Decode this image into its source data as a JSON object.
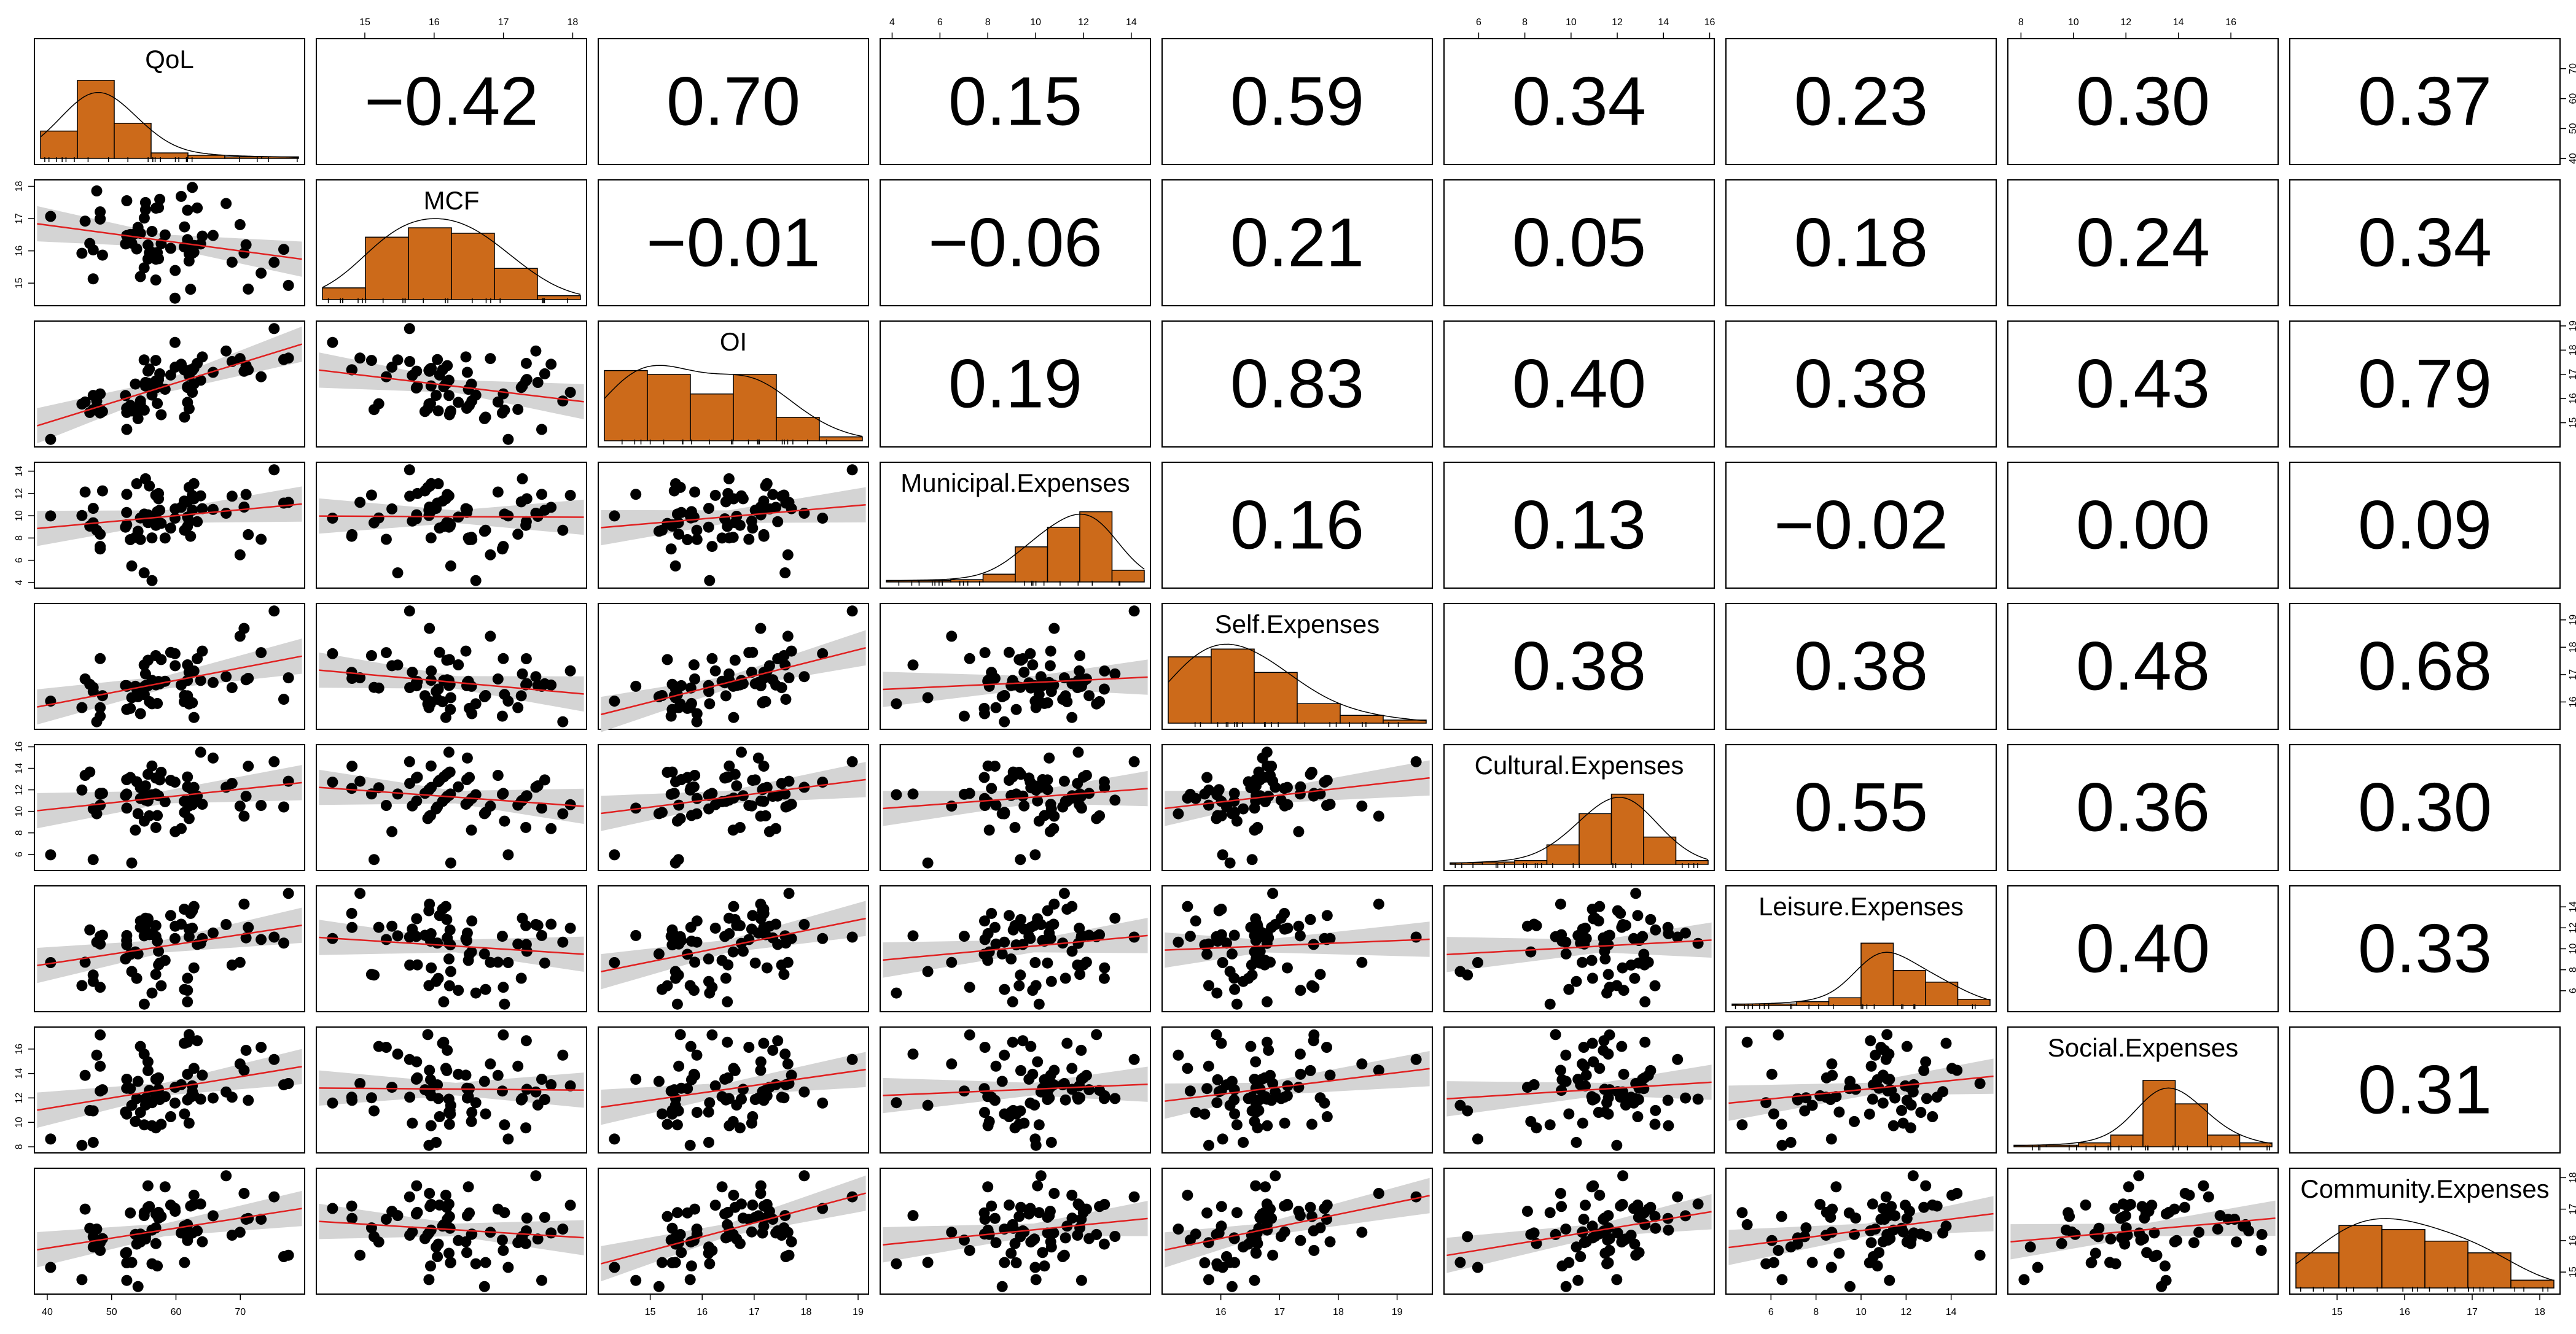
{
  "chart_data": {
    "type": "scatter-matrix",
    "variables": [
      "QoL",
      "MCF",
      "OI",
      "Municipal.Expenses",
      "Self.Expenses",
      "Cultural.Expenses",
      "Leisure.Expenses",
      "Social.Expenses",
      "Community.Expenses"
    ],
    "ranges": [
      [
        38,
        80
      ],
      [
        14.3,
        18.2
      ],
      [
        14.0,
        19.2
      ],
      [
        3.5,
        14.8
      ],
      [
        15.0,
        19.6
      ],
      [
        4.5,
        16.2
      ],
      [
        4.0,
        16.0
      ],
      [
        7.5,
        17.8
      ],
      [
        14.3,
        18.3
      ]
    ],
    "correlations": [
      [
        null,
        "−0.42",
        "0.70",
        "0.15",
        "0.59",
        "0.34",
        "0.23",
        "0.30",
        "0.37"
      ],
      [
        null,
        null,
        "−0.01",
        "−0.06",
        "0.21",
        "0.05",
        "0.18",
        "0.24",
        "0.34"
      ],
      [
        null,
        null,
        null,
        "0.19",
        "0.83",
        "0.40",
        "0.38",
        "0.43",
        "0.79"
      ],
      [
        null,
        null,
        null,
        null,
        "0.16",
        "0.13",
        "−0.02",
        "0.00",
        "0.09"
      ],
      [
        null,
        null,
        null,
        null,
        null,
        "0.38",
        "0.38",
        "0.48",
        "0.68"
      ],
      [
        null,
        null,
        null,
        null,
        null,
        null,
        "0.55",
        "0.36",
        "0.30"
      ],
      [
        null,
        null,
        null,
        null,
        null,
        null,
        null,
        "0.40",
        "0.33"
      ],
      [
        null,
        null,
        null,
        null,
        null,
        null,
        null,
        null,
        "0.31"
      ]
    ],
    "histograms": [
      [
        0.35,
        1.0,
        0.45,
        0.07,
        0.04,
        0.02,
        0.02
      ],
      [
        0.15,
        0.8,
        0.92,
        0.85,
        0.4,
        0.05
      ],
      [
        0.9,
        0.85,
        0.6,
        0.85,
        0.3,
        0.05
      ],
      [
        0.02,
        0.02,
        0.03,
        0.1,
        0.45,
        0.7,
        0.9,
        0.15
      ],
      [
        0.85,
        0.95,
        0.65,
        0.25,
        0.1,
        0.04
      ],
      [
        0.02,
        0.03,
        0.05,
        0.25,
        0.65,
        0.9,
        0.35,
        0.05
      ],
      [
        0.02,
        0.02,
        0.05,
        0.1,
        0.8,
        0.45,
        0.3,
        0.08
      ],
      [
        0.02,
        0.02,
        0.05,
        0.15,
        0.85,
        0.55,
        0.15,
        0.05
      ],
      [
        0.45,
        0.8,
        0.75,
        0.6,
        0.45,
        0.1
      ]
    ],
    "axis_ticks": {
      "top": [
        {
          "col": 1,
          "ticks": [
            "15",
            "16",
            "17",
            "18"
          ]
        },
        {
          "col": 3,
          "ticks": [
            "4",
            "6",
            "8",
            "10",
            "12",
            "14"
          ]
        },
        {
          "col": 5,
          "ticks": [
            "6",
            "8",
            "10",
            "12",
            "14",
            "16"
          ]
        },
        {
          "col": 7,
          "ticks": [
            "8",
            "10",
            "12",
            "14",
            "16"
          ]
        }
      ],
      "bottom": [
        {
          "col": 0,
          "ticks": [
            "40",
            "50",
            "60",
            "70"
          ]
        },
        {
          "col": 2,
          "ticks": [
            "15",
            "16",
            "17",
            "18",
            "19"
          ]
        },
        {
          "col": 4,
          "ticks": [
            "16",
            "17",
            "18",
            "19"
          ]
        },
        {
          "col": 6,
          "ticks": [
            "6",
            "8",
            "10",
            "12",
            "14"
          ]
        },
        {
          "col": 8,
          "ticks": [
            "15",
            "16",
            "17",
            "18"
          ]
        }
      ],
      "left": [
        {
          "row": 1,
          "ticks": [
            "15",
            "16",
            "17",
            "18"
          ]
        },
        {
          "row": 3,
          "ticks": [
            "4",
            "6",
            "8",
            "10",
            "12",
            "14"
          ]
        },
        {
          "row": 5,
          "ticks": [
            "6",
            "8",
            "10",
            "12",
            "14",
            "16"
          ]
        },
        {
          "row": 7,
          "ticks": [
            "8",
            "10",
            "12",
            "14",
            "16"
          ]
        }
      ],
      "right": [
        {
          "row": 0,
          "ticks": [
            "40",
            "50",
            "60",
            "70"
          ]
        },
        {
          "row": 2,
          "ticks": [
            "15",
            "16",
            "17",
            "18",
            "19"
          ]
        },
        {
          "row": 4,
          "ticks": [
            "16",
            "17",
            "18",
            "19"
          ]
        },
        {
          "row": 6,
          "ticks": [
            "6",
            "8",
            "10",
            "12",
            "14"
          ]
        },
        {
          "row": 8,
          "ticks": [
            "15",
            "16",
            "17",
            "18"
          ]
        }
      ]
    },
    "colors": {
      "hist_fill": "#cc6a1a",
      "points": "#000000",
      "fit_line": "#e02020",
      "ci_band": "#d4d4d4",
      "frame": "#000000"
    }
  }
}
